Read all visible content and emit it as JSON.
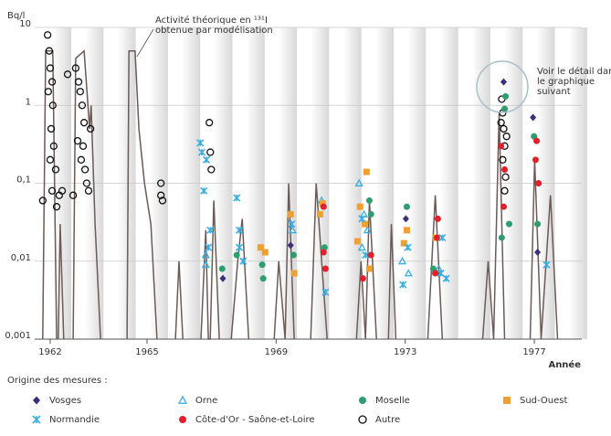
{
  "chart_data": {
    "type": "scatter",
    "y_label": "Bq/l",
    "x_label": "Année",
    "log_y": true,
    "grid": true,
    "xlim": [
      1961.52,
      1978.47
    ],
    "xticks": [
      1962,
      1965,
      1969,
      1973,
      1977
    ],
    "ylim": [
      0.001,
      10
    ],
    "yticks": [
      {
        "value": 0.001,
        "label": "0,001"
      },
      {
        "value": 0.01,
        "label": "0,01"
      },
      {
        "value": 0.1,
        "label": "0,1"
      },
      1,
      10
    ],
    "legend_title": "Origine des mesures :",
    "annotations": [
      {
        "lines": [
          "Activité théorique en ¹³¹I",
          "obtenue par modélisation"
        ]
      },
      {
        "lines": [
          "Voir le détail dans",
          "le graphique",
          "suivant"
        ]
      }
    ],
    "model_line": {
      "color": "#6b5a55",
      "x": [
        1961.77,
        1961.86,
        1962.08,
        1962.2,
        null,
        1962.25,
        1962.31,
        1962.42,
        null,
        1962.71,
        1962.79,
        1963.05,
        1963.22,
        1963.27,
        1963.39,
        1963.56,
        null,
        1964.38,
        1964.44,
        1964.63,
        1964.75,
        1964.92,
        1965.12,
        1965.31,
        null,
        1965.88,
        1965.99,
        1966.11,
        null,
        1966.67,
        1966.82,
        1966.9,
        1966.96,
        1967.07,
        1967.24,
        null,
        1967.61,
        1967.81,
        1967.95,
        1968.15,
        null,
        1968.94,
        1969.08,
        1969.28,
        1969.39,
        1969.56,
        null,
        1970.07,
        1970.24,
        1970.41,
        1970.58,
        null,
        1971.49,
        1971.63,
        1971.77,
        1971.89,
        1972.11,
        null,
        1972.48,
        1972.57,
        1972.71,
        null,
        1973.7,
        1973.93,
        1974.15,
        null,
        1975.4,
        1975.57,
        1975.74,
        1975.91,
        1976.08,
        null,
        1976.87,
        1977.01,
        1977.21,
        1977.5,
        1977.72
      ],
      "values": [
        0.001,
        5,
        5,
        0.001,
        null,
        0.001,
        0.03,
        0.001,
        null,
        0.001,
        4,
        5,
        0.5,
        1,
        0.03,
        0.001,
        null,
        0.001,
        5,
        5,
        0.5,
        0.1,
        0.03,
        0.001,
        null,
        0.001,
        0.01,
        0.001,
        null,
        0.001,
        0.025,
        0.001,
        0.001,
        0.06,
        0.001,
        null,
        0.001,
        0.01,
        0.035,
        0.001,
        null,
        0.001,
        0.01,
        0.001,
        0.1,
        0.001,
        null,
        0.001,
        0.1,
        0.01,
        0.001,
        null,
        0.001,
        0.01,
        0.001,
        0.06,
        0.001,
        null,
        0.001,
        0.03,
        0.001,
        null,
        0.001,
        0.07,
        0.001,
        null,
        0.001,
        0.01,
        0.001,
        0.8,
        0.001,
        null,
        0.001,
        0.2,
        0.001,
        0.07,
        0.001
      ]
    },
    "series": [
      {
        "name": "Vosges",
        "color": "#3b2f7d",
        "marker": "diamond",
        "x": [
          1976.05,
          1967.35,
          1969.45,
          1973.02,
          1976.96,
          1977.1
        ],
        "values": [
          2,
          0.006,
          0.016,
          0.035,
          0.7,
          0.013
        ]
      },
      {
        "name": "Orne",
        "color": "#3aaee0",
        "marker": "triangle",
        "x": [
          1971.57,
          1966.82,
          1966.82,
          1971.72,
          1971.83,
          1972.91,
          1973.1,
          1974.04,
          1969.51,
          1970.41,
          1971.66
        ],
        "values": [
          0.1,
          0.012,
          0.009,
          0.04,
          0.025,
          0.01,
          0.007,
          0.008,
          0.025,
          0.06,
          0.015
        ]
      },
      {
        "name": "Moselle",
        "color": "#2e9e6e",
        "marker": "circle",
        "x": [
          1976.11,
          1976.08,
          1975.99,
          1976.22,
          1967.33,
          1967.78,
          1968.57,
          1968.6,
          1969.54,
          1970.5,
          1971.89,
          1971.94,
          1973.05,
          1973.87,
          1976.99,
          1977.1
        ],
        "values": [
          1.3,
          0.9,
          0.02,
          0.03,
          0.008,
          0.012,
          0.009,
          0.006,
          0.012,
          0.015,
          0.06,
          0.04,
          0.05,
          0.008,
          0.4,
          0.03
        ]
      },
      {
        "name": "Sud-Ouest",
        "color": "#f0a030",
        "marker": "square",
        "x": [
          1971.8,
          1971.6,
          1971.75,
          1971.52,
          1969.45,
          1969.56,
          1970.36,
          1970.44,
          1972.96,
          1973.05,
          1973.95,
          1968.52,
          1968.66,
          1971.89
        ],
        "values": [
          0.14,
          0.05,
          0.03,
          0.018,
          0.04,
          0.007,
          0.04,
          0.055,
          0.017,
          0.025,
          0.02,
          0.015,
          0.013,
          0.008
        ]
      },
      {
        "name": "Normandie",
        "color": "#3aaee0",
        "marker": "asterisk",
        "x": [
          1966.65,
          1966.7,
          1966.84,
          1966.76,
          1966.9,
          1966.96,
          1967.78,
          1967.86,
          1967.86,
          1967.98,
          1969.48,
          1970.53,
          1971.66,
          1971.77,
          1972.93,
          1973.08,
          1974.15,
          1974.1,
          1974.27,
          1977.38
        ],
        "values": [
          0.33,
          0.25,
          0.2,
          0.08,
          0.015,
          0.025,
          0.065,
          0.025,
          0.015,
          0.01,
          0.03,
          0.004,
          0.035,
          0.012,
          0.005,
          0.015,
          0.02,
          0.007,
          0.006,
          0.009
        ]
      },
      {
        "name": "Côte-d'Or - Saône-et-Loire",
        "color": "#e0202a",
        "marker": "circle",
        "x": [
          1975.97,
          1976.08,
          1976.05,
          1970.47,
          1970.47,
          1970.53,
          1971.69,
          1971.94,
          1974.01,
          1973.98,
          1973.93,
          1977.07,
          1977.13,
          1977.04
        ],
        "values": [
          0.3,
          0.15,
          0.05,
          0.05,
          0.013,
          0.008,
          0.006,
          0.012,
          0.035,
          0.02,
          0.007,
          0.35,
          0.1,
          0.2
        ]
      },
      {
        "name": "Autre",
        "color": "#111111",
        "marker": "open-circle",
        "x": [
          1961.92,
          1961.97,
          1962,
          1962.06,
          1961.94,
          1962.08,
          1962.03,
          1962.11,
          1962.17,
          1962,
          1962.06,
          1962.2,
          1962.28,
          1962.37,
          1961.77,
          1962.54,
          1962.79,
          1962.88,
          1962.93,
          1962.99,
          1963.05,
          1962.85,
          1962.96,
          1963.08,
          1963.13,
          1963.19,
          1962.71,
          1963.02,
          1963.25,
          1965.43,
          1965.43,
          1965.48,
          1966.93,
          1966.96,
          1966.99,
          1975.99,
          1976.02,
          1976.05,
          1976.08,
          1976.02,
          1976.11,
          1976.08,
          1976.14,
          1975.97
        ],
        "values": [
          8,
          5,
          3,
          2,
          1.5,
          1,
          0.5,
          0.3,
          0.15,
          0.2,
          0.08,
          0.05,
          0.07,
          0.08,
          0.06,
          2.5,
          3,
          2,
          1.5,
          1,
          0.6,
          0.35,
          0.2,
          0.15,
          0.1,
          0.08,
          0.07,
          0.3,
          0.5,
          0.1,
          0.07,
          0.06,
          0.6,
          0.25,
          0.15,
          1.2,
          0.8,
          0.5,
          0.3,
          0.2,
          0.12,
          0.08,
          0.4,
          0.6
        ]
      }
    ]
  }
}
